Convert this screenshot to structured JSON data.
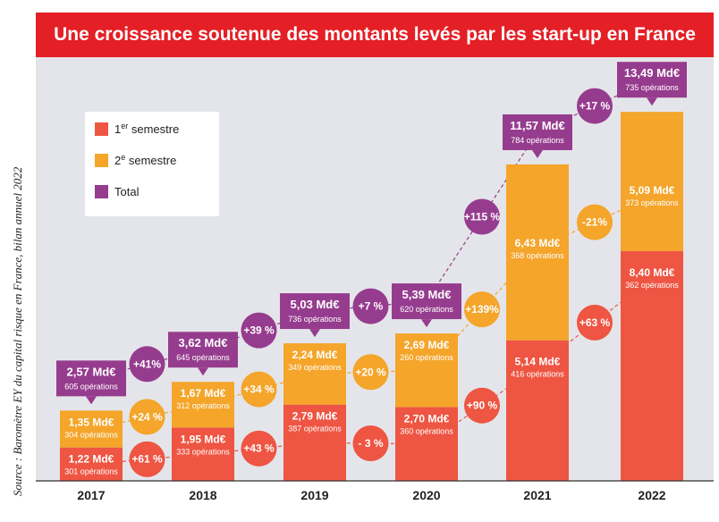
{
  "title": "Une croissance soutenue des montants levés par les start-up en France",
  "source": "Source : Baromètre EY du capital risque en France, bilan annuel 2022",
  "colors": {
    "s1": "#ee5542",
    "s2": "#f4a52a",
    "total": "#963c8e",
    "title_bg": "#e41f26",
    "bg": "#e4e5ea"
  },
  "legend": [
    {
      "key": "s1",
      "label": "1",
      "sup": "er",
      "suffix": " semestre"
    },
    {
      "key": "s2",
      "label": "2",
      "sup": "e",
      "suffix": " semestre"
    },
    {
      "key": "total",
      "label": "Total",
      "sup": "",
      "suffix": ""
    }
  ],
  "chart_data": {
    "type": "bar",
    "stacked": true,
    "categories": [
      "2017",
      "2018",
      "2019",
      "2020",
      "2021",
      "2022"
    ],
    "series": [
      {
        "name": "1er semestre",
        "key": "s1",
        "values": [
          1.22,
          1.95,
          2.79,
          2.7,
          5.14,
          8.4
        ],
        "labels": [
          "1,22 Md€",
          "1,95 Md€",
          "2,79 Md€",
          "2,70 Md€",
          "5,14 Md€",
          "8,40 Md€"
        ],
        "operations": [
          "301 opérations",
          "333 opérations",
          "387 opérations",
          "360 opérations",
          "416 opérations",
          "362 opérations"
        ]
      },
      {
        "name": "2e semestre",
        "key": "s2",
        "values": [
          1.35,
          1.67,
          2.24,
          2.69,
          6.43,
          5.09
        ],
        "labels": [
          "1,35 Md€",
          "1,67 Md€",
          "2,24 Md€",
          "2,69 Md€",
          "6,43 Md€",
          "5,09 Md€"
        ],
        "operations": [
          "304 opérations",
          "312 opérations",
          "349 opérations",
          "260 opérations",
          "368 opérations",
          "373 opérations"
        ]
      },
      {
        "name": "Total",
        "key": "total",
        "values": [
          2.57,
          3.62,
          5.03,
          5.39,
          11.57,
          13.49
        ],
        "labels": [
          "2,57 Md€",
          "3,62 Md€",
          "5,03 Md€",
          "5,39 Md€",
          "11,57 Md€",
          "13,49 Md€"
        ],
        "operations": [
          "605 opérations",
          "645 opérations",
          "736 opérations",
          "620 opérations",
          "784 opérations",
          "735 opérations"
        ]
      }
    ],
    "growth": {
      "s1": [
        "+61 %",
        "+43 %",
        "- 3 %",
        "+90 %",
        "+63 %"
      ],
      "s2": [
        "+24 %",
        "+34 %",
        "+20 %",
        "+139%",
        "-21%"
      ],
      "total": [
        "+41%",
        "+39 %",
        "+7 %",
        "+115 %",
        "+17 %"
      ]
    },
    "ylim": [
      0,
      14
    ],
    "grid": false,
    "legend_position": "top-left"
  }
}
